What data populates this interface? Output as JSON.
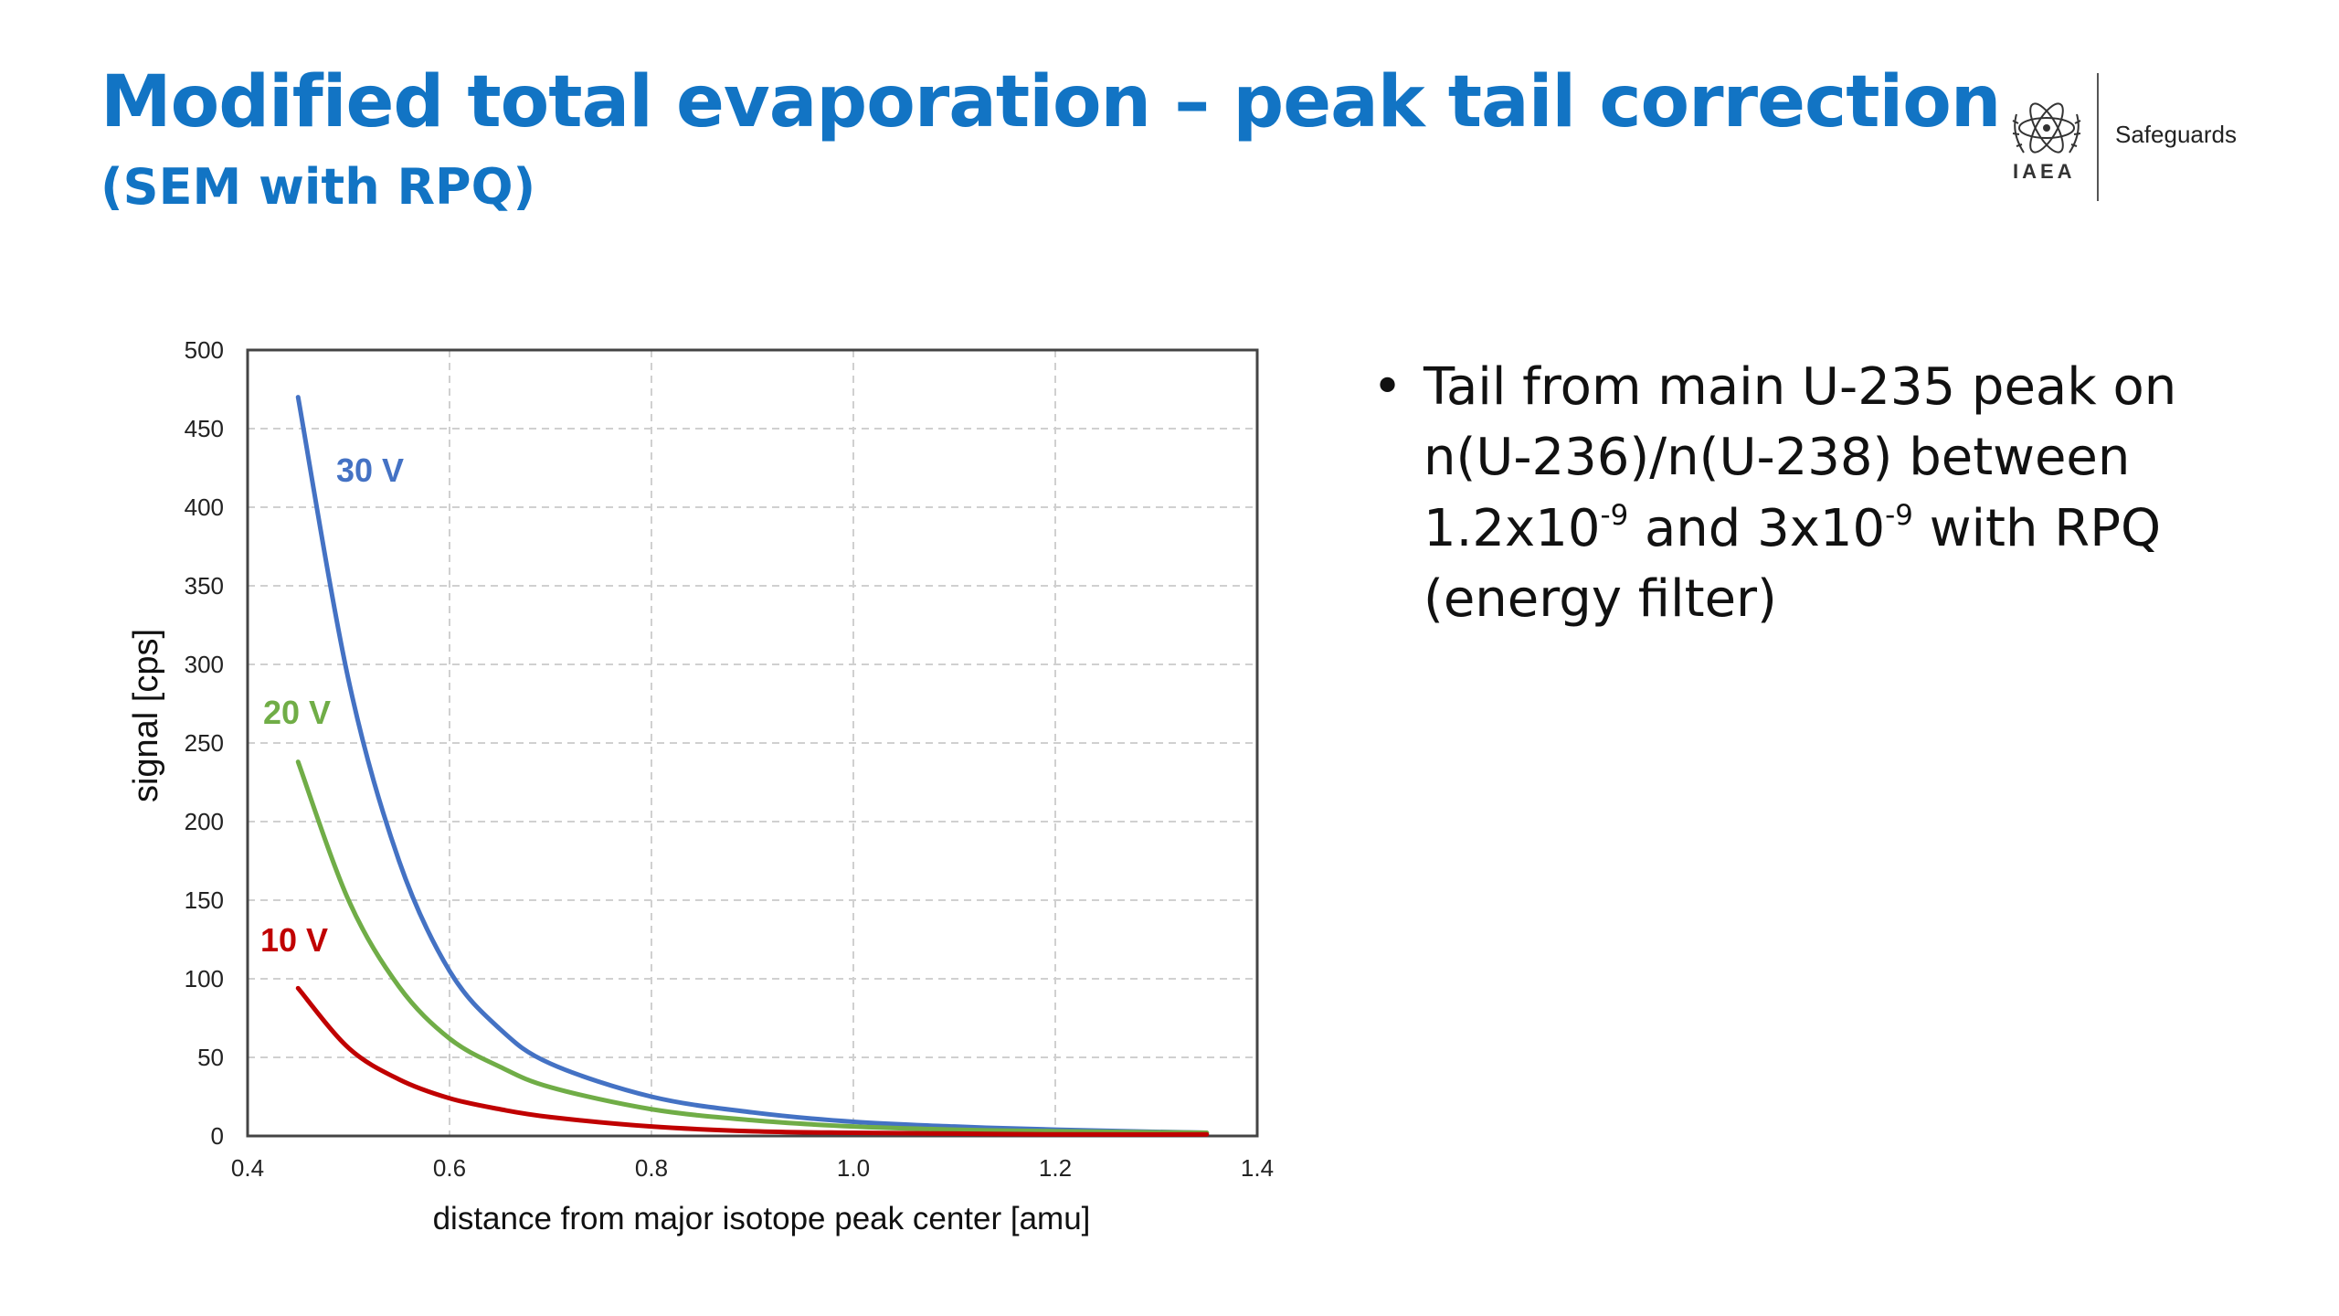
{
  "slide": {
    "title": "Modified total evaporation – peak tail correction",
    "subtitle": "(SEM with RPQ)"
  },
  "logo": {
    "org": "IAEA",
    "dept": "Safeguards"
  },
  "bullets": [
    {
      "marker": "•",
      "parts": [
        "Tail from main U-235 peak on n(U-236)/n(U-238) between 1.2x10",
        "-9",
        " and 3x10",
        "-9",
        " with RPQ (energy filter)"
      ]
    }
  ],
  "chart_data": {
    "type": "line",
    "xlabel": "distance from major isotope peak center [amu]",
    "ylabel": "signal [cps]",
    "xlim": [
      0.4,
      1.4
    ],
    "ylim": [
      0,
      500
    ],
    "xticks": [
      0.4,
      0.6,
      0.8,
      1.0,
      1.2,
      1.4
    ],
    "xtick_labels": [
      "0.4",
      "0.6",
      "0.8",
      "1.0",
      "1.2",
      "1.4"
    ],
    "yticks": [
      0,
      50,
      100,
      150,
      200,
      250,
      300,
      350,
      400,
      450,
      500
    ],
    "grid": true,
    "series": [
      {
        "name": "30 V",
        "color": "#4472c4",
        "x": [
          0.45,
          0.5,
          0.55,
          0.6,
          0.65,
          0.7,
          0.8,
          0.9,
          1.0,
          1.1,
          1.2,
          1.35
        ],
        "y": [
          470,
          290,
          175,
          105,
          68,
          46,
          25,
          15,
          9,
          6,
          4,
          2
        ]
      },
      {
        "name": "20 V",
        "color": "#70ad47",
        "x": [
          0.45,
          0.5,
          0.55,
          0.6,
          0.65,
          0.7,
          0.8,
          0.9,
          1.0,
          1.1,
          1.2,
          1.35
        ],
        "y": [
          238,
          150,
          95,
          62,
          44,
          31,
          17,
          10,
          6,
          4,
          3,
          2
        ]
      },
      {
        "name": "10 V",
        "color": "#c00000",
        "x": [
          0.45,
          0.5,
          0.55,
          0.6,
          0.65,
          0.7,
          0.8,
          0.9,
          1.0,
          1.1,
          1.2,
          1.35
        ],
        "y": [
          94,
          56,
          36,
          24,
          17,
          12,
          6,
          3,
          2,
          1.5,
          1,
          1
        ]
      }
    ]
  }
}
